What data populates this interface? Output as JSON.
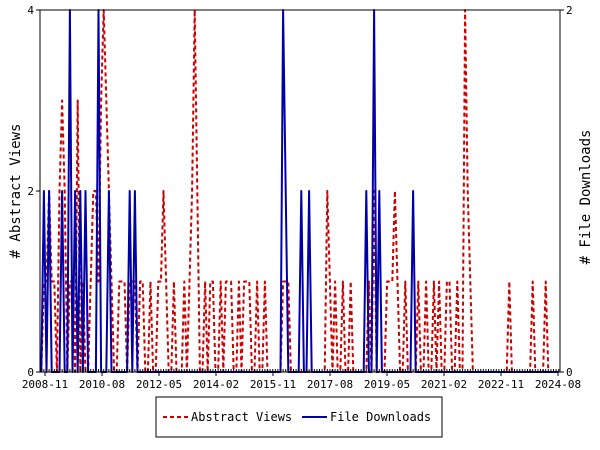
{
  "chart_data": {
    "type": "line",
    "x_ticks": [
      "2008-11",
      "2010-08",
      "2012-05",
      "2014-02",
      "2015-11",
      "2017-08",
      "2019-05",
      "2021-02",
      "2022-11",
      "2024-08"
    ],
    "y_left": {
      "label": "# Abstract Views",
      "ticks": [
        "0",
        "2",
        "4"
      ],
      "range": [
        0,
        4
      ]
    },
    "y_right": {
      "label": "# File Downloads",
      "ticks": [
        "0",
        "2"
      ],
      "range": [
        0,
        2
      ]
    },
    "months": 200,
    "series": [
      {
        "name": "Abstract Views",
        "axis": "left",
        "color": "#cc0000",
        "dash": "4,3",
        "values": [
          0,
          1,
          1,
          2,
          1,
          1,
          0,
          2,
          3,
          2,
          0,
          1,
          1,
          0,
          3,
          0,
          1,
          0,
          0,
          1,
          2,
          2,
          1,
          3,
          4,
          3,
          2,
          1,
          0,
          0,
          1,
          1,
          1,
          0,
          1,
          1,
          1,
          0,
          1,
          1,
          0,
          0,
          1,
          0,
          0,
          1,
          1,
          2,
          1,
          0,
          0,
          1,
          0,
          0,
          0,
          1,
          0,
          1,
          2,
          4,
          2,
          0,
          0,
          1,
          0,
          1,
          1,
          0,
          0,
          1,
          0,
          1,
          1,
          1,
          0,
          0,
          1,
          0,
          1,
          1,
          1,
          0,
          0,
          1,
          0,
          0,
          1,
          0,
          0,
          0,
          0,
          0,
          0,
          1,
          1,
          1,
          0,
          0,
          0,
          0,
          0,
          0,
          0,
          0,
          0,
          0,
          0,
          0,
          0,
          0,
          2,
          1,
          0,
          1,
          0,
          0,
          1,
          0,
          0,
          1,
          0,
          0,
          0,
          0,
          0,
          0,
          1,
          0,
          2,
          0,
          0,
          0,
          0,
          1,
          1,
          1,
          2,
          1,
          0,
          0,
          1,
          0,
          0,
          0,
          0,
          1,
          0,
          0,
          1,
          0,
          0,
          1,
          0,
          1,
          0,
          0,
          1,
          1,
          0,
          0,
          1,
          0,
          0,
          4,
          2,
          1,
          0,
          0,
          0,
          0,
          0,
          0,
          0,
          0,
          0,
          0,
          0,
          0,
          0,
          0,
          1,
          0,
          0,
          0,
          0,
          0,
          0,
          0,
          0,
          1,
          0,
          0,
          0,
          0,
          1,
          0,
          0,
          0,
          0,
          0
        ]
      },
      {
        "name": "File Downloads",
        "axis": "right",
        "color": "#0000aa",
        "dash": "",
        "values": [
          0,
          1,
          0,
          1,
          0,
          0,
          0,
          0,
          1,
          0,
          0,
          2,
          0,
          1,
          0,
          1,
          0,
          1,
          0,
          0,
          0,
          0,
          2,
          0,
          0,
          0,
          1,
          0,
          0,
          0,
          0,
          0,
          0,
          0,
          1,
          0,
          1,
          0,
          0,
          0,
          0,
          0,
          0,
          0,
          0,
          0,
          0,
          0,
          0,
          0,
          0,
          0,
          0,
          0,
          0,
          0,
          0,
          0,
          0,
          0,
          0,
          0,
          0,
          0,
          0,
          0,
          0,
          0,
          0,
          0,
          0,
          0,
          0,
          0,
          0,
          0,
          0,
          0,
          0,
          0,
          0,
          0,
          0,
          0,
          0,
          0,
          0,
          0,
          0,
          0,
          0,
          0,
          0,
          2,
          1,
          0,
          0,
          0,
          0,
          0,
          1,
          0,
          0,
          1,
          0,
          0,
          0,
          0,
          0,
          0,
          0,
          0,
          0,
          0,
          0,
          0,
          0,
          0,
          0,
          0,
          0,
          0,
          0,
          0,
          0,
          1,
          0,
          0,
          2,
          0,
          1,
          0,
          0,
          0,
          0,
          0,
          0,
          0,
          0,
          0,
          0,
          0,
          0,
          1,
          0,
          0,
          0,
          0,
          0,
          0,
          0,
          0,
          0,
          0,
          0,
          0,
          0,
          0,
          0,
          0,
          0,
          0,
          0,
          0,
          0,
          0,
          0,
          0,
          0,
          0,
          0,
          0,
          0,
          0,
          0,
          0,
          0,
          0,
          0,
          0,
          0,
          0,
          0,
          0,
          0,
          0,
          0,
          0,
          0,
          0,
          0,
          0,
          0,
          0,
          0,
          0,
          0,
          0,
          0,
          0
        ]
      }
    ],
    "legend": {
      "placement": "bottom",
      "entries": [
        "Abstract Views",
        "File Downloads"
      ]
    }
  }
}
